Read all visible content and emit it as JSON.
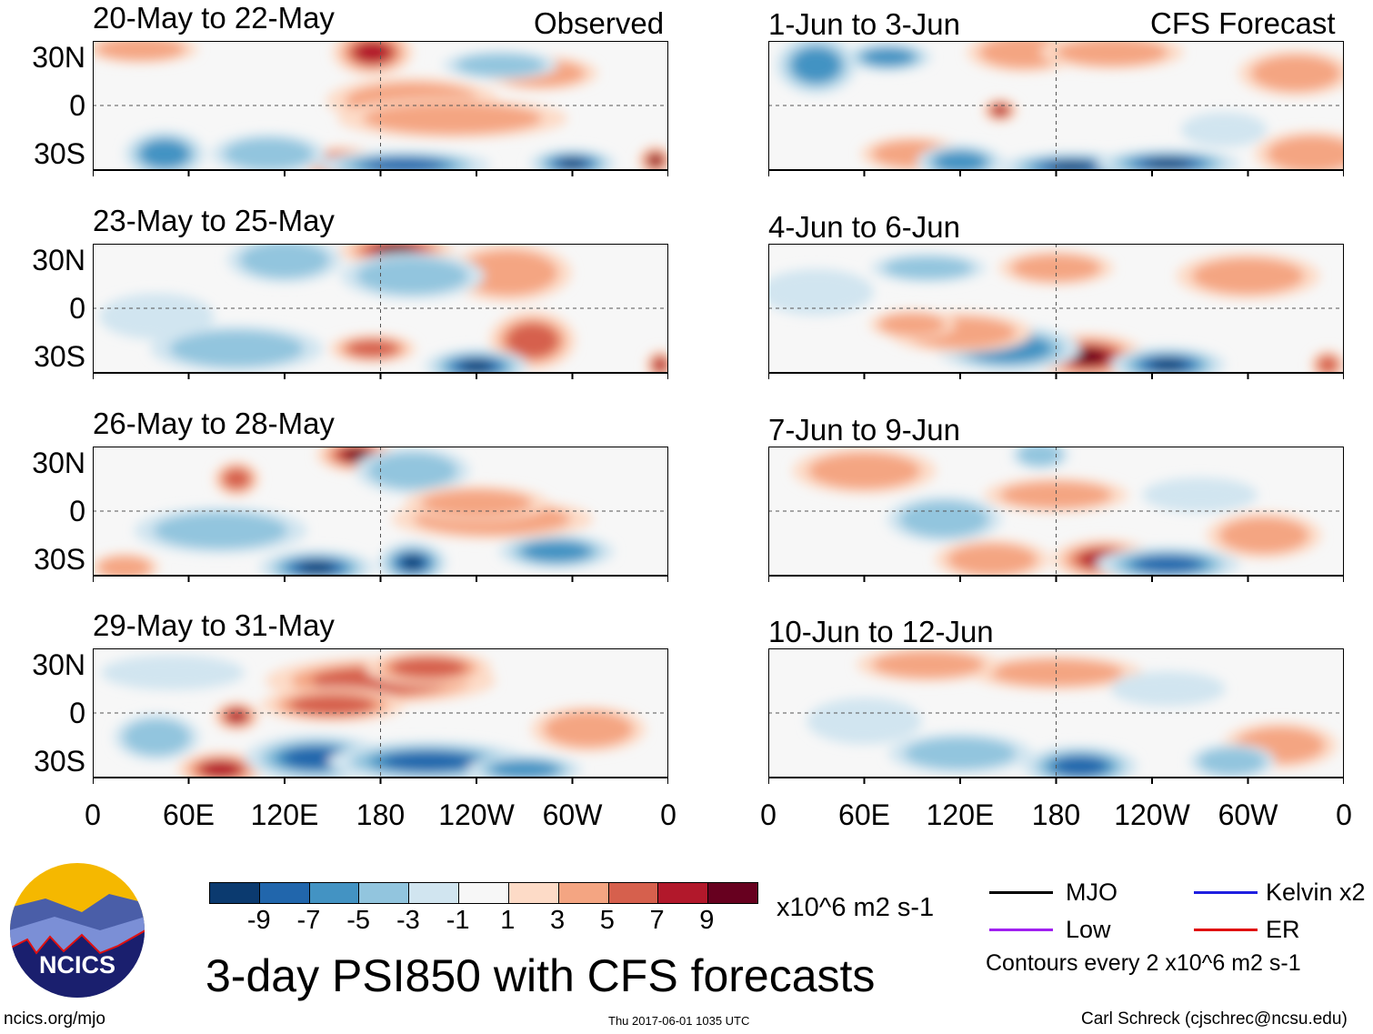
{
  "header": {
    "observed_label": "Observed",
    "forecast_label": "CFS Forecast"
  },
  "lat_labels": [
    "30N",
    "0",
    "30S"
  ],
  "lon_labels": [
    "0",
    "60E",
    "120E",
    "180",
    "120W",
    "60W",
    "0"
  ],
  "colors": [
    "#0b3a6f",
    "#2166ac",
    "#4393c3",
    "#92c5de",
    "#d1e5f0",
    "#f7f7f7",
    "#fddbc7",
    "#f4a582",
    "#d6604d",
    "#b2182b",
    "#67001f"
  ],
  "chart_data": {
    "type": "heatmap",
    "title": "3-day PSI850 with CFS forecasts",
    "units": "x10^6 m2 s-1",
    "levels": [
      "-9",
      "-7",
      "-5",
      "-3",
      "-1",
      "1",
      "3",
      "5",
      "7",
      "9"
    ],
    "lon_range": [
      0,
      360
    ],
    "lat_range": [
      -40,
      40
    ],
    "panels": [
      {
        "title": "20-May to 22-May",
        "blobs": [
          [
            175,
            33,
            14,
            8,
            8
          ],
          [
            155,
            -36,
            14,
            6,
            9
          ],
          [
            352,
            -34,
            6,
            5,
            9
          ],
          [
            200,
            3,
            30,
            8,
            3
          ],
          [
            225,
            -8,
            40,
            7,
            4
          ],
          [
            280,
            20,
            20,
            6,
            3
          ],
          [
            45,
            -30,
            14,
            8,
            -6
          ],
          [
            195,
            -37,
            30,
            5,
            -8
          ],
          [
            300,
            -36,
            15,
            5,
            -9
          ],
          [
            110,
            -30,
            20,
            7,
            -3
          ],
          [
            255,
            25,
            20,
            5,
            -3
          ],
          [
            30,
            35,
            20,
            5,
            3
          ]
        ]
      },
      {
        "title": "1-Jun to 3-Jun",
        "blobs": [
          [
            30,
            25,
            14,
            10,
            -6
          ],
          [
            145,
            -3,
            6,
            4,
            7
          ],
          [
            160,
            33,
            20,
            7,
            4
          ],
          [
            215,
            33,
            25,
            6,
            4
          ],
          [
            90,
            -30,
            18,
            6,
            3
          ],
          [
            190,
            -38,
            25,
            5,
            -9
          ],
          [
            250,
            -36,
            25,
            5,
            -9
          ],
          [
            120,
            -35,
            15,
            6,
            -6
          ],
          [
            340,
            -30,
            20,
            8,
            4
          ],
          [
            330,
            20,
            20,
            8,
            3
          ],
          [
            75,
            30,
            15,
            5,
            -5
          ],
          [
            285,
            -15,
            15,
            6,
            -2
          ]
        ]
      },
      {
        "title": "23-May to 25-May",
        "blobs": [
          [
            190,
            36,
            20,
            6,
            9
          ],
          [
            260,
            22,
            22,
            10,
            4
          ],
          [
            275,
            -20,
            15,
            10,
            5
          ],
          [
            240,
            -36,
            18,
            6,
            -9
          ],
          [
            90,
            -25,
            30,
            8,
            -4
          ],
          [
            175,
            -25,
            15,
            5,
            5
          ],
          [
            120,
            30,
            20,
            8,
            -4
          ],
          [
            200,
            20,
            25,
            8,
            -3
          ],
          [
            355,
            -35,
            5,
            5,
            7
          ],
          [
            40,
            -5,
            20,
            8,
            -2
          ]
        ]
      },
      {
        "title": "4-Jun to 6-Jun",
        "blobs": [
          [
            200,
            -30,
            20,
            8,
            9
          ],
          [
            250,
            -35,
            20,
            6,
            -9
          ],
          [
            150,
            -25,
            25,
            8,
            -5
          ],
          [
            120,
            -15,
            25,
            7,
            3
          ],
          [
            90,
            -10,
            15,
            5,
            3
          ],
          [
            180,
            25,
            20,
            6,
            3
          ],
          [
            100,
            25,
            20,
            5,
            -3
          ],
          [
            300,
            20,
            25,
            8,
            3
          ],
          [
            350,
            -35,
            6,
            5,
            5
          ],
          [
            30,
            10,
            20,
            8,
            -2
          ]
        ]
      },
      {
        "title": "26-May to 28-May",
        "blobs": [
          [
            165,
            35,
            14,
            6,
            9
          ],
          [
            140,
            -35,
            20,
            6,
            -9
          ],
          [
            200,
            -32,
            12,
            7,
            -9
          ],
          [
            290,
            -25,
            20,
            6,
            -5
          ],
          [
            80,
            -12,
            30,
            8,
            -4
          ],
          [
            250,
            -5,
            35,
            7,
            3
          ],
          [
            200,
            25,
            20,
            8,
            -4
          ],
          [
            240,
            5,
            25,
            6,
            3
          ],
          [
            20,
            -35,
            12,
            5,
            4
          ],
          [
            90,
            20,
            8,
            6,
            5
          ]
        ]
      },
      {
        "title": "7-Jun to 9-Jun",
        "blobs": [
          [
            210,
            -30,
            18,
            7,
            7
          ],
          [
            250,
            -33,
            25,
            6,
            -7
          ],
          [
            110,
            -5,
            20,
            8,
            -3
          ],
          [
            180,
            10,
            25,
            6,
            3
          ],
          [
            270,
            10,
            20,
            6,
            -2
          ],
          [
            310,
            -15,
            20,
            8,
            3
          ],
          [
            60,
            25,
            25,
            8,
            3
          ],
          [
            170,
            35,
            10,
            5,
            -3
          ],
          [
            140,
            -30,
            20,
            7,
            3
          ]
        ]
      },
      {
        "title": "29-May to 31-May",
        "blobs": [
          [
            180,
            20,
            40,
            8,
            5
          ],
          [
            150,
            5,
            25,
            6,
            5
          ],
          [
            210,
            28,
            22,
            6,
            6
          ],
          [
            90,
            -2,
            8,
            5,
            8
          ],
          [
            80,
            -35,
            15,
            6,
            7
          ],
          [
            140,
            -28,
            25,
            8,
            -7
          ],
          [
            210,
            -30,
            35,
            7,
            -8
          ],
          [
            270,
            -35,
            20,
            5,
            -5
          ],
          [
            40,
            -15,
            15,
            8,
            -3
          ],
          [
            50,
            25,
            25,
            6,
            -2
          ],
          [
            310,
            -10,
            20,
            8,
            3
          ]
        ]
      },
      {
        "title": "10-Jun to 12-Jun",
        "blobs": [
          [
            195,
            -33,
            20,
            7,
            -8
          ],
          [
            120,
            -25,
            25,
            7,
            -4
          ],
          [
            180,
            25,
            30,
            6,
            3
          ],
          [
            250,
            15,
            20,
            6,
            -2
          ],
          [
            60,
            -5,
            20,
            8,
            -2
          ],
          [
            320,
            -20,
            20,
            8,
            3
          ],
          [
            100,
            30,
            25,
            6,
            3
          ],
          [
            290,
            -30,
            15,
            6,
            -3
          ]
        ]
      }
    ]
  },
  "legend": {
    "items": [
      {
        "label": "MJO",
        "color": "#000000"
      },
      {
        "label": "Kelvin x2",
        "color": "#1f1fe0"
      },
      {
        "label": "Low",
        "color": "#a020f0"
      },
      {
        "label": "ER",
        "color": "#e01010"
      }
    ],
    "note": "Contours every 2 x10^6 m2 s-1"
  },
  "logo": {
    "text": "NCICS"
  },
  "footer": {
    "url": "ncics.org/mjo",
    "timestamp": "Thu 2017-06-01 1035 UTC",
    "author": "Carl Schreck (cjschrec@ncsu.edu)"
  }
}
